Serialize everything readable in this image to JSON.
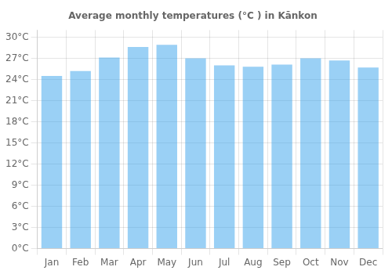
{
  "chart_data": {
    "type": "bar",
    "title": "Average monthly temperatures (°C ) in Kānkon",
    "categories": [
      "Jan",
      "Feb",
      "Mar",
      "Apr",
      "May",
      "Jun",
      "Jul",
      "Aug",
      "Sep",
      "Oct",
      "Nov",
      "Dec"
    ],
    "values": [
      24.5,
      25.2,
      27.1,
      28.6,
      28.9,
      27.0,
      26.0,
      25.8,
      26.1,
      27.0,
      26.7,
      25.7
    ],
    "ylim": [
      0,
      31
    ],
    "yticks": [
      {
        "value": 0,
        "label": "0°C"
      },
      {
        "value": 3,
        "label": "3°C"
      },
      {
        "value": 6,
        "label": "6°C"
      },
      {
        "value": 9,
        "label": "9°C"
      },
      {
        "value": 12,
        "label": "12°C"
      },
      {
        "value": 15,
        "label": "15°C"
      },
      {
        "value": 18,
        "label": "18°C"
      },
      {
        "value": 21,
        "label": "21°C"
      },
      {
        "value": 24,
        "label": "24°C"
      },
      {
        "value": 27,
        "label": "27°C"
      },
      {
        "value": 30,
        "label": "30°C"
      }
    ],
    "grid": true
  }
}
